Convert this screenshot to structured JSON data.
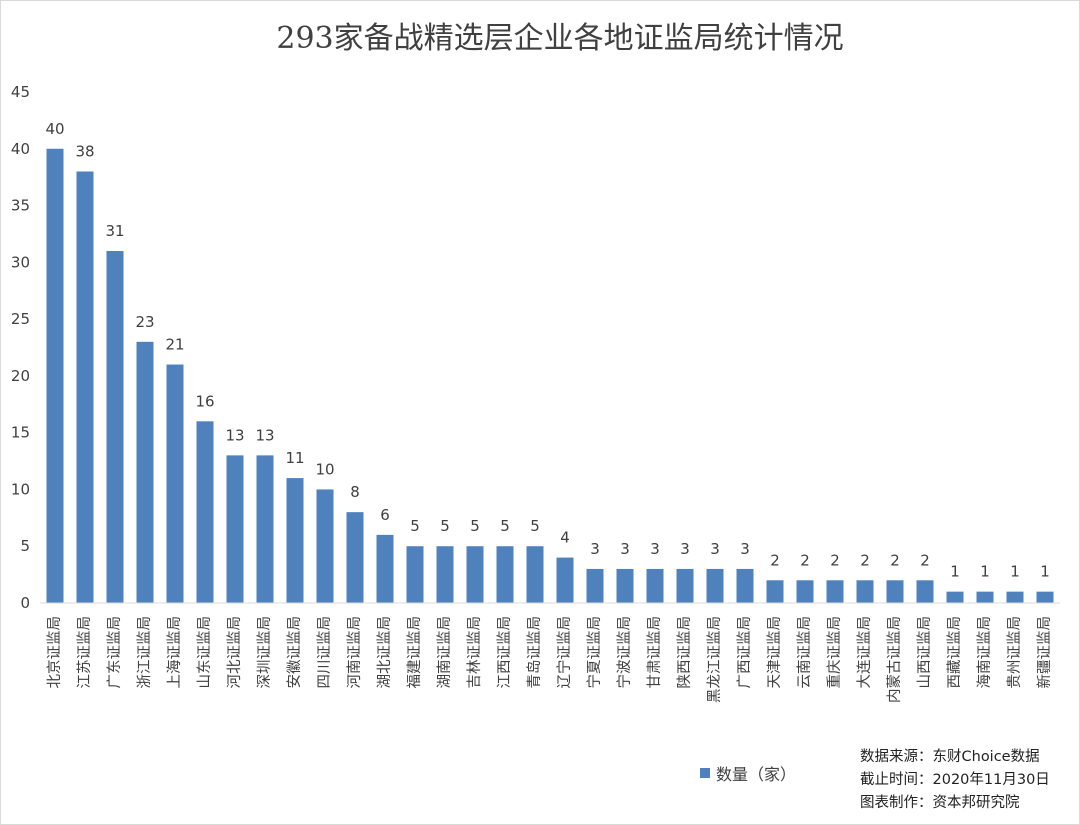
{
  "chart_data": {
    "type": "bar",
    "title": "293家备战精选层企业各地证监局统计情况",
    "xlabel": "",
    "ylabel": "",
    "ylim": [
      0,
      45
    ],
    "yticks": [
      0,
      5,
      10,
      15,
      20,
      25,
      30,
      35,
      40,
      45
    ],
    "grid": false,
    "legend_position": "bottom-center",
    "bar_color": "#4f81bd",
    "categories": [
      "北京证监局",
      "江苏证监局",
      "广东证监局",
      "浙江证监局",
      "上海证监局",
      "山东证监局",
      "河北证监局",
      "深圳证监局",
      "安徽证监局",
      "四川证监局",
      "河南证监局",
      "湖北证监局",
      "福建证监局",
      "湖南证监局",
      "吉林证监局",
      "江西证监局",
      "青岛证监局",
      "辽宁证监局",
      "宁夏证监局",
      "宁波证监局",
      "甘肃证监局",
      "陕西证监局",
      "黑龙江证监局",
      "广西证监局",
      "天津证监局",
      "云南证监局",
      "重庆证监局",
      "大连证监局",
      "内蒙古证监局",
      "山西证监局",
      "西藏证监局",
      "海南证监局",
      "贵州证监局",
      "新疆证监局"
    ],
    "series": [
      {
        "name": "数量（家）",
        "values": [
          40,
          38,
          31,
          23,
          21,
          16,
          13,
          13,
          11,
          10,
          8,
          6,
          5,
          5,
          5,
          5,
          5,
          4,
          3,
          3,
          3,
          3,
          3,
          3,
          2,
          2,
          2,
          2,
          2,
          2,
          1,
          1,
          1,
          1
        ]
      }
    ]
  },
  "notes": {
    "source": "数据来源：东财Choice数据",
    "date": "截止时间：2020年11月30日",
    "maker": "图表制作：资本邦研究院"
  }
}
